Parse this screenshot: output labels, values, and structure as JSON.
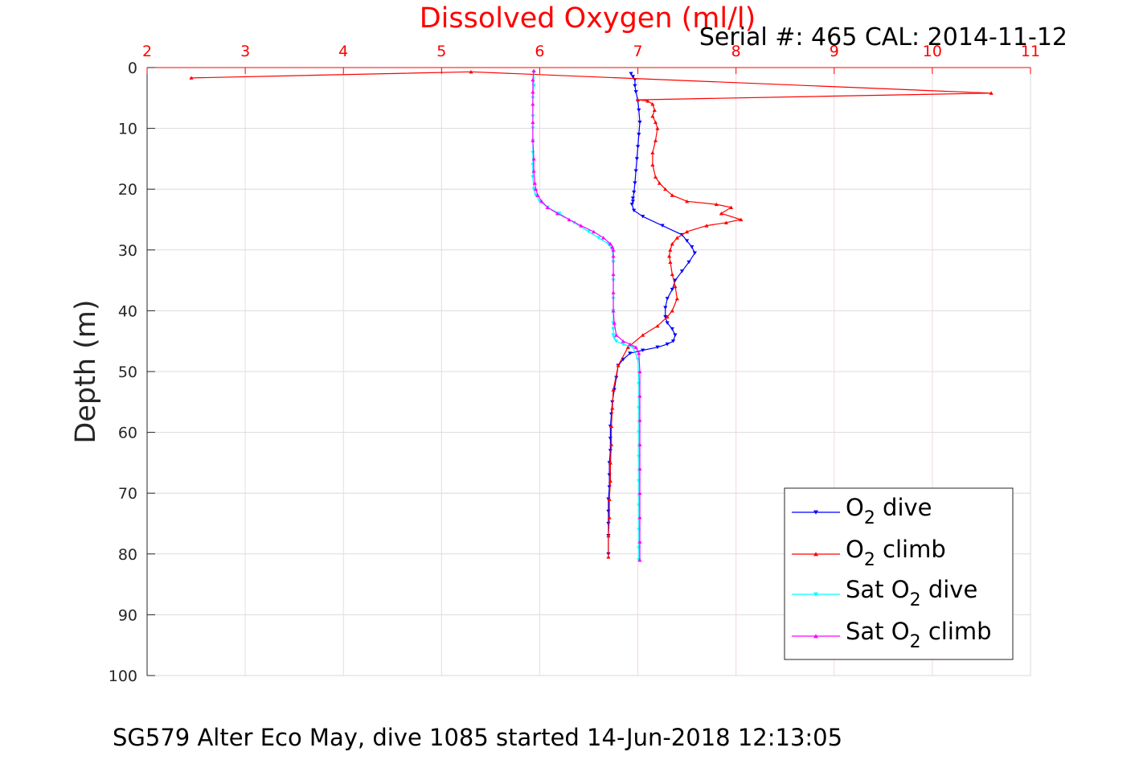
{
  "chart_data": {
    "type": "line",
    "title": "Dissolved Oxygen (ml/l)",
    "subtitle": "Serial #: 465  CAL: 2014-11-12",
    "footer": "SG579 Alter Eco May, dive 1085 started 14-Jun-2018 12:13:05",
    "ylabel": "Depth (m)",
    "xlabel": "",
    "xlim": [
      2,
      11
    ],
    "ylim": [
      0,
      100
    ],
    "y_reversed": true,
    "x_axis_position": "top",
    "x_ticks": [
      "2",
      "3",
      "4",
      "5",
      "6",
      "7",
      "8",
      "9",
      "10",
      "11"
    ],
    "y_ticks": [
      "0",
      "10",
      "20",
      "30",
      "40",
      "50",
      "60",
      "70",
      "80",
      "90",
      "100"
    ],
    "grid": true,
    "legend_position": "bottom-right",
    "colors": {
      "title": "#ff0000",
      "x_axis": "#ff0000",
      "grid_x": "#f0d8e0",
      "grid_y": "#dcdcdc"
    },
    "series": [
      {
        "name": "O2 dive",
        "legend_main": "O",
        "legend_sub": "2",
        "legend_rest": " dive",
        "color": "#0000ff",
        "marker": "triangle-down",
        "x": [
          6.93,
          6.95,
          6.97,
          6.97,
          6.98,
          7.0,
          7.01,
          7.02,
          7.01,
          7.0,
          6.99,
          6.98,
          6.97,
          6.96,
          6.95,
          6.95,
          6.94,
          6.96,
          7.05,
          7.25,
          7.45,
          7.5,
          7.55,
          7.58,
          7.52,
          7.45,
          7.38,
          7.35,
          7.3,
          7.28,
          7.28,
          7.3,
          7.35,
          7.38,
          7.36,
          7.3,
          7.2,
          7.05,
          6.92,
          6.85,
          6.8,
          6.78,
          6.76,
          6.74,
          6.73,
          6.72,
          6.72,
          6.72,
          6.71,
          6.71,
          6.71,
          6.7,
          6.7,
          6.7,
          6.7,
          6.7
        ],
        "y": [
          1.0,
          1.5,
          2.0,
          3.0,
          4.0,
          5.5,
          7.0,
          9.0,
          11.0,
          13.0,
          15.0,
          17.0,
          19.0,
          20.5,
          21.5,
          22.0,
          22.5,
          23.5,
          24.5,
          26.0,
          27.5,
          28.5,
          29.5,
          30.5,
          32.0,
          33.5,
          35.0,
          36.5,
          38.0,
          39.5,
          41.0,
          42.0,
          43.0,
          44.0,
          45.0,
          45.5,
          46.0,
          46.5,
          47.0,
          48.0,
          49.0,
          51.0,
          53.0,
          55.0,
          57.0,
          59.0,
          61.0,
          63.0,
          65.0,
          67.0,
          69.0,
          71.0,
          73.0,
          75.0,
          77.0,
          80.0
        ]
      },
      {
        "name": "O2 climb",
        "legend_main": "O",
        "legend_sub": "2",
        "legend_rest": " climb",
        "color": "#ff0000",
        "marker": "triangle-up",
        "x": [
          6.7,
          6.7,
          6.71,
          6.71,
          6.72,
          6.72,
          6.73,
          6.73,
          6.74,
          6.75,
          6.8,
          6.9,
          7.05,
          7.2,
          7.3,
          7.35,
          7.4,
          7.38,
          7.35,
          7.33,
          7.32,
          7.33,
          7.35,
          7.4,
          7.5,
          7.7,
          7.9,
          8.05,
          7.85,
          7.95,
          7.8,
          7.5,
          7.35,
          7.28,
          7.22,
          7.18,
          7.15,
          7.15,
          7.18,
          7.2,
          7.18,
          7.15,
          7.17,
          7.15,
          7.1,
          7.0,
          10.6,
          5.3,
          2.45
        ],
        "y": [
          80.5,
          77.0,
          74.0,
          71.0,
          68.0,
          65.0,
          62.0,
          59.0,
          56.0,
          53.0,
          49.0,
          46.0,
          44.0,
          42.5,
          41.0,
          40.0,
          38.0,
          36.0,
          34.0,
          32.0,
          31.0,
          30.0,
          29.0,
          28.0,
          27.0,
          26.0,
          25.5,
          25.0,
          24.0,
          23.0,
          22.5,
          22.0,
          21.0,
          20.0,
          19.0,
          18.0,
          16.0,
          14.0,
          12.0,
          10.0,
          9.0,
          8.0,
          7.0,
          6.0,
          5.5,
          5.3,
          4.2,
          0.7,
          1.7
        ]
      },
      {
        "name": "Sat O2 dive",
        "legend_main": "Sat O",
        "legend_sub": "2",
        "legend_rest": " dive",
        "color": "#00ffff",
        "marker": "triangle-down",
        "x": [
          5.94,
          5.94,
          5.93,
          5.93,
          5.93,
          5.93,
          5.93,
          5.93,
          5.93,
          5.94,
          5.96,
          6.0,
          6.08,
          6.2,
          6.35,
          6.5,
          6.6,
          6.7,
          6.74,
          6.75,
          6.75,
          6.75,
          6.75,
          6.75,
          6.75,
          6.75,
          6.76,
          6.78,
          6.85,
          6.95,
          7.0,
          7.01,
          7.01,
          7.01,
          7.01,
          7.01,
          7.01,
          7.01,
          7.01,
          7.01
        ],
        "y": [
          0.8,
          3.0,
          5.0,
          8.0,
          10.0,
          12.0,
          14.0,
          16.0,
          18.0,
          20.0,
          21.0,
          22.0,
          23.0,
          24.0,
          25.5,
          27.0,
          28.0,
          29.0,
          30.0,
          32.0,
          35.0,
          38.0,
          40.0,
          42.0,
          43.0,
          44.0,
          44.5,
          45.0,
          45.5,
          46.0,
          48.0,
          52.0,
          56.0,
          60.0,
          64.0,
          68.0,
          72.0,
          76.0,
          79.0,
          81.0
        ]
      },
      {
        "name": "Sat O2 climb",
        "legend_main": "Sat O",
        "legend_sub": "2",
        "legend_rest": " climb",
        "color": "#ff00ff",
        "marker": "triangle-up",
        "x": [
          7.02,
          7.02,
          7.02,
          7.02,
          7.02,
          7.02,
          7.02,
          7.02,
          7.02,
          7.01,
          6.98,
          6.92,
          6.85,
          6.78,
          6.76,
          6.75,
          6.75,
          6.75,
          6.75,
          6.75,
          6.74,
          6.72,
          6.65,
          6.55,
          6.42,
          6.3,
          6.18,
          6.08,
          6.02,
          5.98,
          5.96,
          5.95,
          5.94,
          5.94,
          5.93,
          5.93,
          5.93,
          5.93,
          5.93,
          5.94
        ],
        "y": [
          81.0,
          78.0,
          74.0,
          70.0,
          66.0,
          62.0,
          58.0,
          54.0,
          50.0,
          47.0,
          46.0,
          45.5,
          45.0,
          44.0,
          42.0,
          40.0,
          37.0,
          34.0,
          31.0,
          30.0,
          29.5,
          29.0,
          28.0,
          27.0,
          26.0,
          25.0,
          24.0,
          23.0,
          22.0,
          21.0,
          20.0,
          19.0,
          17.0,
          15.0,
          12.0,
          9.0,
          6.0,
          4.0,
          2.0,
          0.5
        ]
      }
    ]
  }
}
